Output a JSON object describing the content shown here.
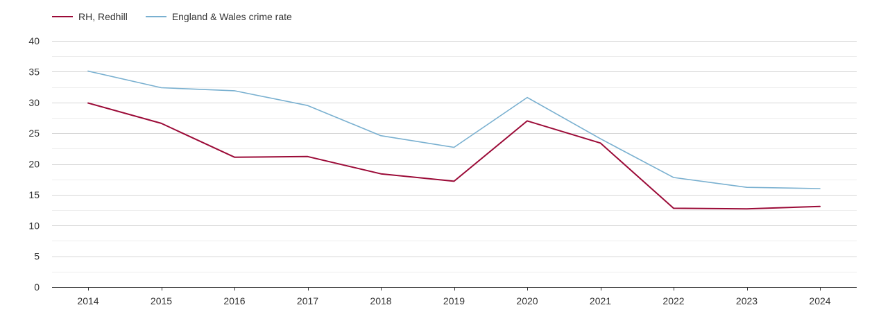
{
  "chart_data": {
    "type": "line",
    "title": "",
    "xlabel": "",
    "ylabel": "",
    "categories": [
      "2014",
      "2015",
      "2016",
      "2017",
      "2018",
      "2019",
      "2020",
      "2021",
      "2022",
      "2023",
      "2024"
    ],
    "ylim": [
      0,
      40
    ],
    "yticks": [
      0,
      5,
      10,
      15,
      20,
      25,
      30,
      35,
      40
    ],
    "grid": true,
    "legend_position": "top-left",
    "series": [
      {
        "name": "RH, Redhill",
        "color": "#9b0a37",
        "values": [
          29.9,
          26.6,
          21.1,
          21.2,
          18.4,
          17.2,
          27.0,
          23.4,
          12.8,
          12.7,
          13.1
        ]
      },
      {
        "name": "England & Wales crime rate",
        "color": "#79b0d0",
        "values": [
          35.1,
          32.4,
          31.9,
          29.5,
          24.6,
          22.7,
          30.8,
          24.1,
          17.8,
          16.2,
          16.0
        ]
      }
    ]
  }
}
